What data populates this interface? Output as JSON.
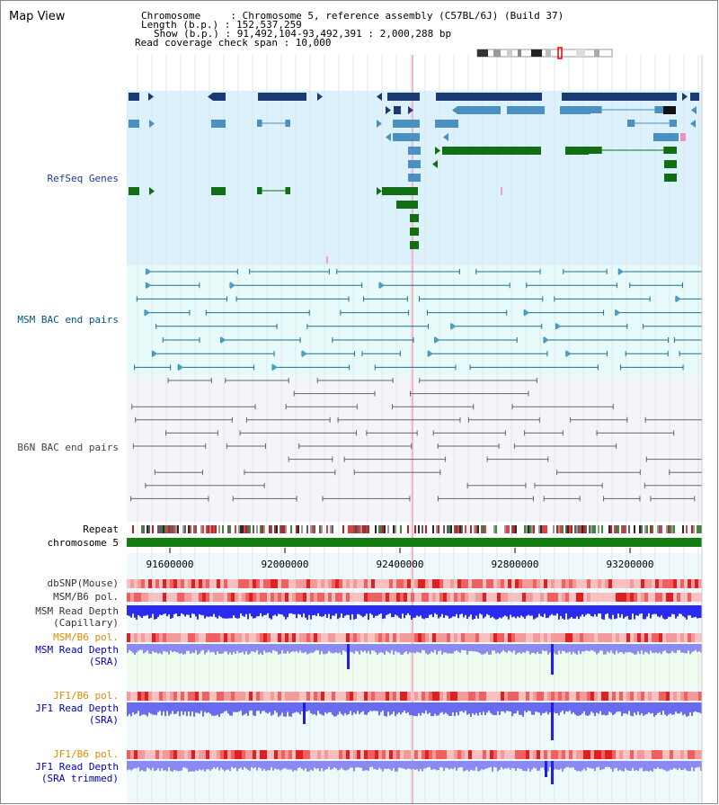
{
  "header": {
    "title": "Map View",
    "chromosome_line": "Chromosome     : Chromosome 5, reference assembly (C57BL/6J) (Build 37)",
    "length_line": "Length (b.p.) : 152,537,259",
    "show_line": "Show (b.p.) : 91,492,104-93,492,391 : 2,000,288 bp",
    "coverage_line": "Read coverage check span : 10,000"
  },
  "tracks": {
    "refseq": "RefSeq Genes",
    "msm_bac": "MSM BAC end pairs",
    "b6n_bac": "B6N BAC end pairs",
    "repeat": "Repeat",
    "chromosome": "chromosome 5",
    "dbsnp": "dbSNP(Mouse)",
    "msm_b6_pol_1": "MSM/B6 pol.",
    "msm_depth_cap_1": "MSM Read Depth",
    "msm_depth_cap_2": "(Capillary)",
    "msm_b6_pol_2": "MSM/B6 pol.",
    "msm_depth_sra_1": "MSM Read Depth",
    "msm_depth_sra_2": "(SRA)",
    "jf1_pol_1": "JF1/B6 pol.",
    "jf1_depth_sra_1": "JF1 Read Depth",
    "jf1_depth_sra_2": "(SRA)",
    "jf1_pol_2": "JF1/B6 pol.",
    "jf1_depth_trim_1": "JF1 Read Depth",
    "jf1_depth_trim_2": "(SRA trimmed)"
  },
  "axis": {
    "ticks": [
      "91600000",
      "92000000",
      "92400000",
      "92800000",
      "93200000"
    ]
  },
  "colors": {
    "refseq_bg": "#dbf1fb",
    "bac_msm_bg": "#e8fbfb",
    "bac_b6n_bg": "#f4f4fb",
    "gene_dark": "#1a3a73",
    "gene_mid": "#4a90c0",
    "gene_green": "#126e12",
    "chromosome": "#137d13",
    "msm_label": "#005580",
    "b6n_label": "#444444",
    "refseq_label": "#1a3a9a",
    "pol_label_orange": "#e08a00",
    "depth_label_blue": "#0000c0"
  }
}
